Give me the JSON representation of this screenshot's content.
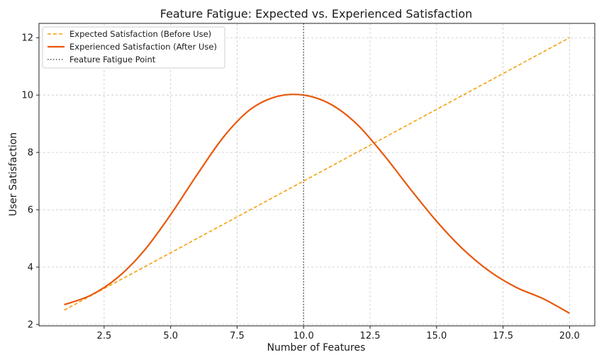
{
  "chart_data": {
    "type": "line",
    "title": "Feature Fatigue: Expected vs. Experienced Satisfaction",
    "xlabel": "Number of Features",
    "ylabel": "User Satisfaction",
    "xlim": [
      0.05,
      20.95
    ],
    "ylim": [
      1.95,
      12.5
    ],
    "xticks": [
      2.5,
      5.0,
      7.5,
      10.0,
      12.5,
      15.0,
      17.5,
      20.0
    ],
    "xtick_labels": [
      "2.5",
      "5.0",
      "7.5",
      "10.0",
      "12.5",
      "15.0",
      "17.5",
      "20.0"
    ],
    "yticks": [
      2,
      4,
      6,
      8,
      10,
      12
    ],
    "ytick_labels": [
      "2",
      "4",
      "6",
      "8",
      "10",
      "12"
    ],
    "grid": true,
    "legend_position": "top-left",
    "series": [
      {
        "name": "Expected Satisfaction (Before Use)",
        "style": "dashed",
        "color": "#f5a00a",
        "x": [
          1,
          20
        ],
        "y": [
          2.5,
          12.0
        ]
      },
      {
        "name": "Experienced Satisfaction (After Use)",
        "style": "solid",
        "color": "#e8590c",
        "x": [
          1,
          2,
          3,
          4,
          5,
          6,
          7,
          8,
          9,
          10,
          11,
          12,
          13,
          14,
          15,
          16,
          17,
          18,
          19,
          20
        ],
        "y": [
          2.69,
          3.02,
          3.63,
          4.57,
          5.83,
          7.23,
          8.55,
          9.5,
          9.95,
          10.0,
          9.69,
          8.99,
          7.93,
          6.74,
          5.6,
          4.62,
          3.85,
          3.29,
          2.9,
          2.39
        ]
      }
    ],
    "vlines": [
      {
        "name": "Feature Fatigue Point",
        "x": 10,
        "style": "dotted",
        "color": "#555555"
      }
    ]
  }
}
